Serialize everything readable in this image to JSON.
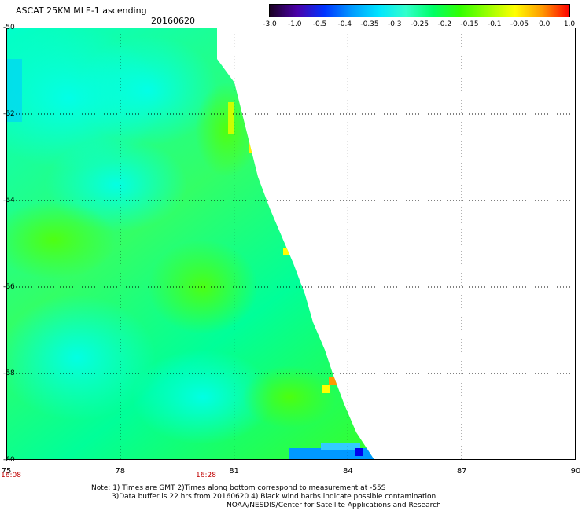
{
  "header": {
    "title": "ASCAT 25KM MLE-1 ascending",
    "date": "20160620"
  },
  "colorbar": {
    "labels": [
      "-3.0",
      "-1.0",
      "-0.5",
      "-0.4",
      "-0.35",
      "-0.3",
      "-0.25",
      "-0.2",
      "-0.15",
      "-0.1",
      "-0.05",
      "0.0",
      "1.0"
    ],
    "colors": [
      "#1a0022",
      "#4b00a8",
      "#0033ff",
      "#0099ff",
      "#00e5ff",
      "#33ffcc",
      "#00ff66",
      "#33ff00",
      "#99ff00",
      "#ffff00",
      "#ff9900",
      "#ff0000"
    ]
  },
  "map": {
    "lon_range": [
      75,
      90
    ],
    "lat_range": [
      -60,
      -50
    ],
    "lon_ticks": [
      "75",
      "78",
      "81",
      "84",
      "87",
      "90"
    ],
    "lat_ticks": [
      "-50",
      "-52",
      "-54",
      "-56",
      "-58",
      "-60"
    ],
    "time_labels": [
      "16:08",
      "16:28"
    ]
  },
  "notes": {
    "line1": "Note: 1) Times are GMT 2)Times along bottom correspond to measurement at -55S",
    "line2": "3)Data buffer is 22 hrs from 20160620 4) Black wind barbs indicate possible contamination",
    "line3": "NOAA/NESDIS/Center for Satellite Applications and Research"
  }
}
